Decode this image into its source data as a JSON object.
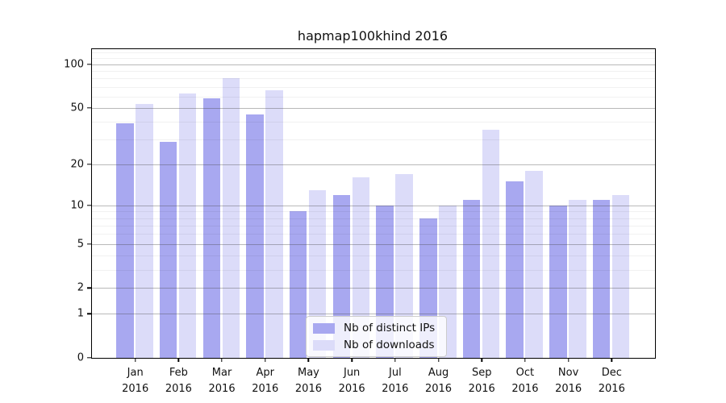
{
  "title": "hapmap100khind 2016",
  "legend": {
    "items": [
      {
        "label": "Nb of distinct IPs",
        "color": "#a8a8f0"
      },
      {
        "label": "Nb of downloads",
        "color": "#dcdcf9"
      }
    ]
  },
  "chart_data": {
    "type": "bar",
    "title": "hapmap100khind 2016",
    "xlabel": "",
    "ylabel": "",
    "scale": "log1p",
    "grid": true,
    "legend_position": "lower center",
    "categories": [
      "Jan",
      "Feb",
      "Mar",
      "Apr",
      "May",
      "Jun",
      "Jul",
      "Aug",
      "Sep",
      "Oct",
      "Nov",
      "Dec"
    ],
    "category_year": "2016",
    "series": [
      {
        "name": "Nb of distinct IPs",
        "color": "#a8a8f0",
        "values": [
          39,
          29,
          58,
          45,
          9,
          12,
          10,
          8,
          11,
          15,
          10,
          11
        ]
      },
      {
        "name": "Nb of downloads",
        "color": "#dcdcf9",
        "values": [
          53,
          63,
          80,
          66,
          13,
          16,
          17,
          10,
          35,
          18,
          11,
          12
        ]
      }
    ],
    "yticks_major": [
      0,
      1,
      2,
      5,
      10,
      20,
      50,
      100
    ],
    "yticks_minor": [
      3,
      4,
      6,
      7,
      8,
      9,
      30,
      40,
      60,
      70,
      80,
      90,
      110,
      120
    ],
    "ylim": [
      0,
      127
    ]
  }
}
